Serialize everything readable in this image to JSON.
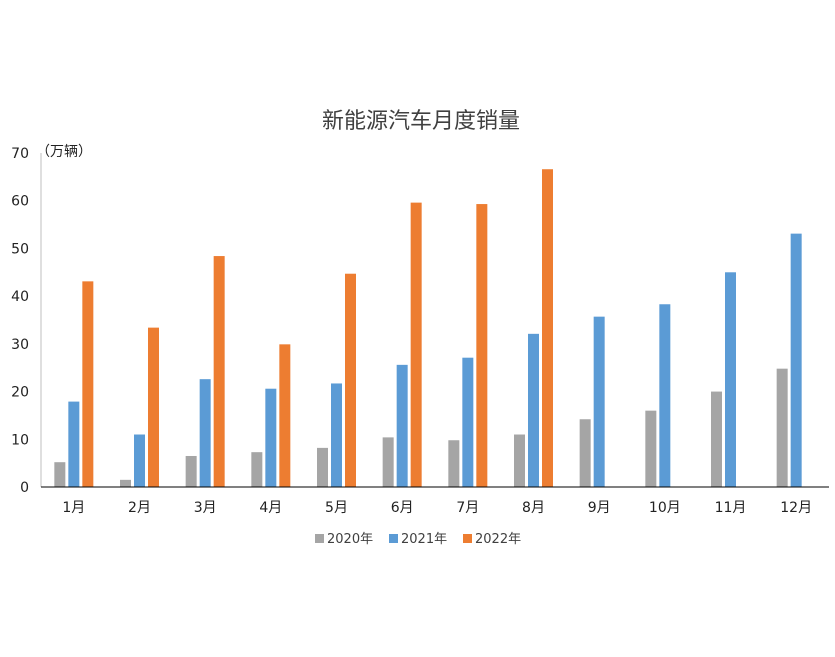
{
  "chart_data": {
    "type": "bar",
    "title": "新能源汽车月度销量",
    "ylabel": "（万辆）",
    "xlabel": "",
    "ylim": [
      0,
      70
    ],
    "yticks": [
      0,
      10,
      20,
      30,
      40,
      50,
      60,
      70
    ],
    "grid": false,
    "legend_position": "bottom",
    "categories": [
      "1月",
      "2月",
      "3月",
      "4月",
      "5月",
      "6月",
      "7月",
      "8月",
      "9月",
      "10月",
      "11月",
      "12月"
    ],
    "series": [
      {
        "name": "2020年",
        "color": "#A5A5A5",
        "values": [
          5.2,
          1.5,
          6.5,
          7.3,
          8.2,
          10.4,
          9.8,
          11.0,
          14.2,
          16.0,
          20.0,
          24.8
        ]
      },
      {
        "name": "2021年",
        "color": "#5B9BD5",
        "values": [
          17.9,
          11.0,
          22.6,
          20.6,
          21.7,
          25.6,
          27.1,
          32.1,
          35.7,
          38.3,
          45.0,
          53.1
        ]
      },
      {
        "name": "2022年",
        "color": "#ED7D31",
        "values": [
          43.1,
          33.4,
          48.4,
          29.9,
          44.7,
          59.6,
          59.3,
          66.6,
          null,
          null,
          null,
          null
        ]
      }
    ]
  }
}
